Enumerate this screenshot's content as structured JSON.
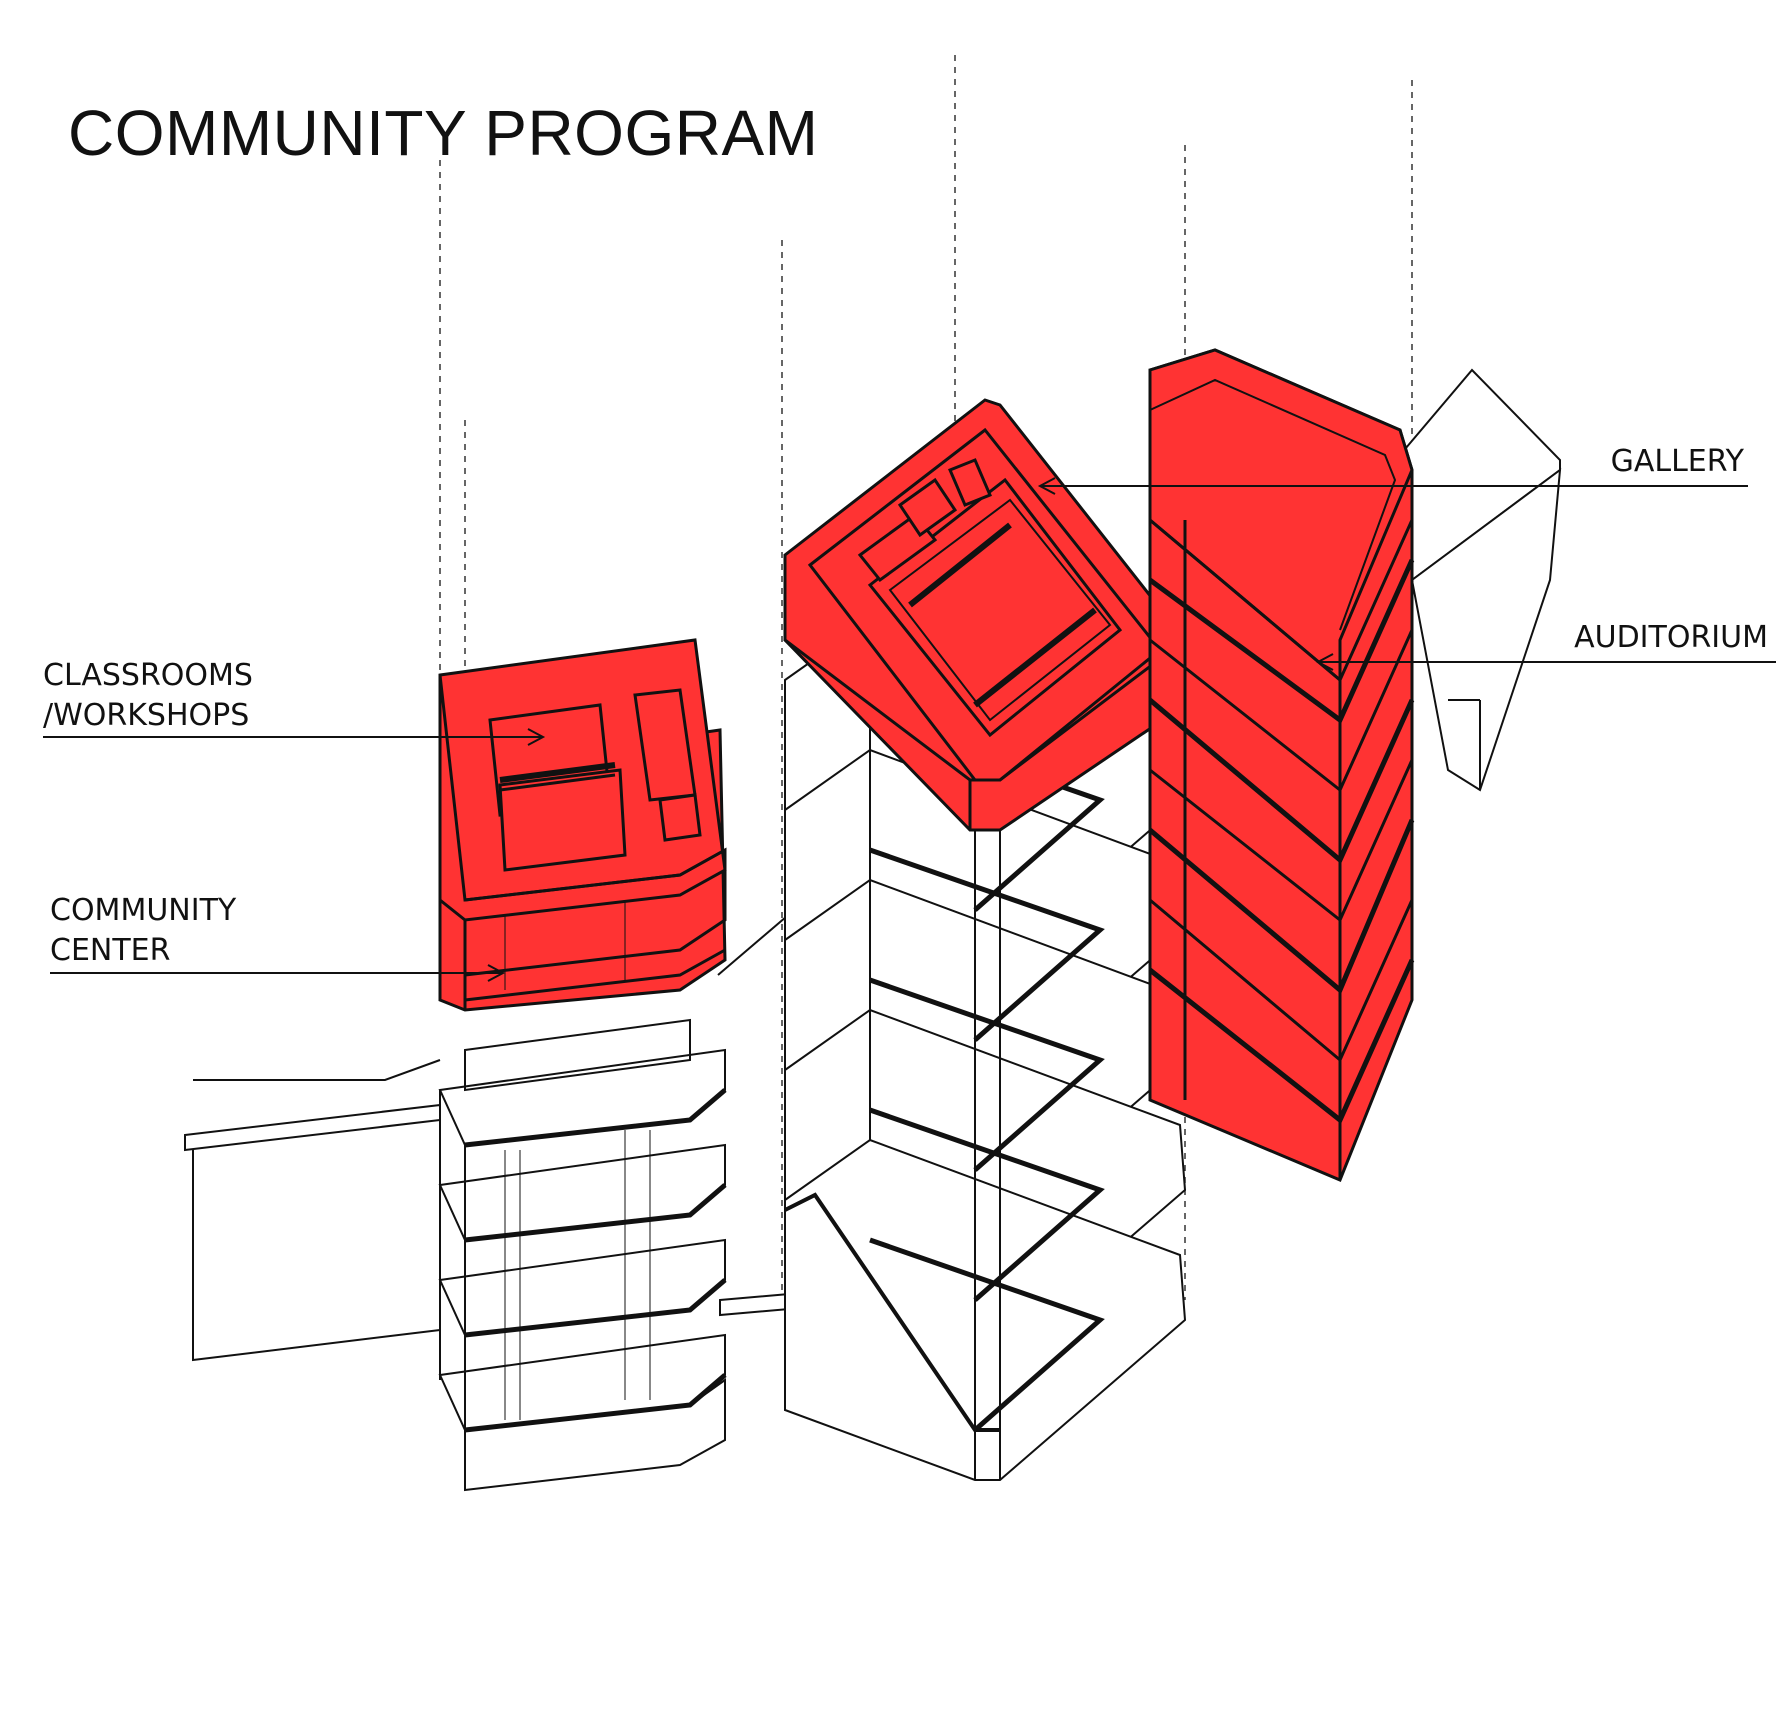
{
  "title": "COMMUNITY PROGRAM",
  "colors": {
    "program": "#ff3333",
    "ink": "#111111",
    "background": "#ffffff"
  },
  "labels": {
    "gallery": "GALLERY",
    "auditorium": "AUDITORIUM",
    "classrooms_line1": "CLASSROOMS",
    "classrooms_line2": "/WORKSHOPS",
    "community_line1": "COMMUNITY",
    "community_line2": "CENTER"
  }
}
